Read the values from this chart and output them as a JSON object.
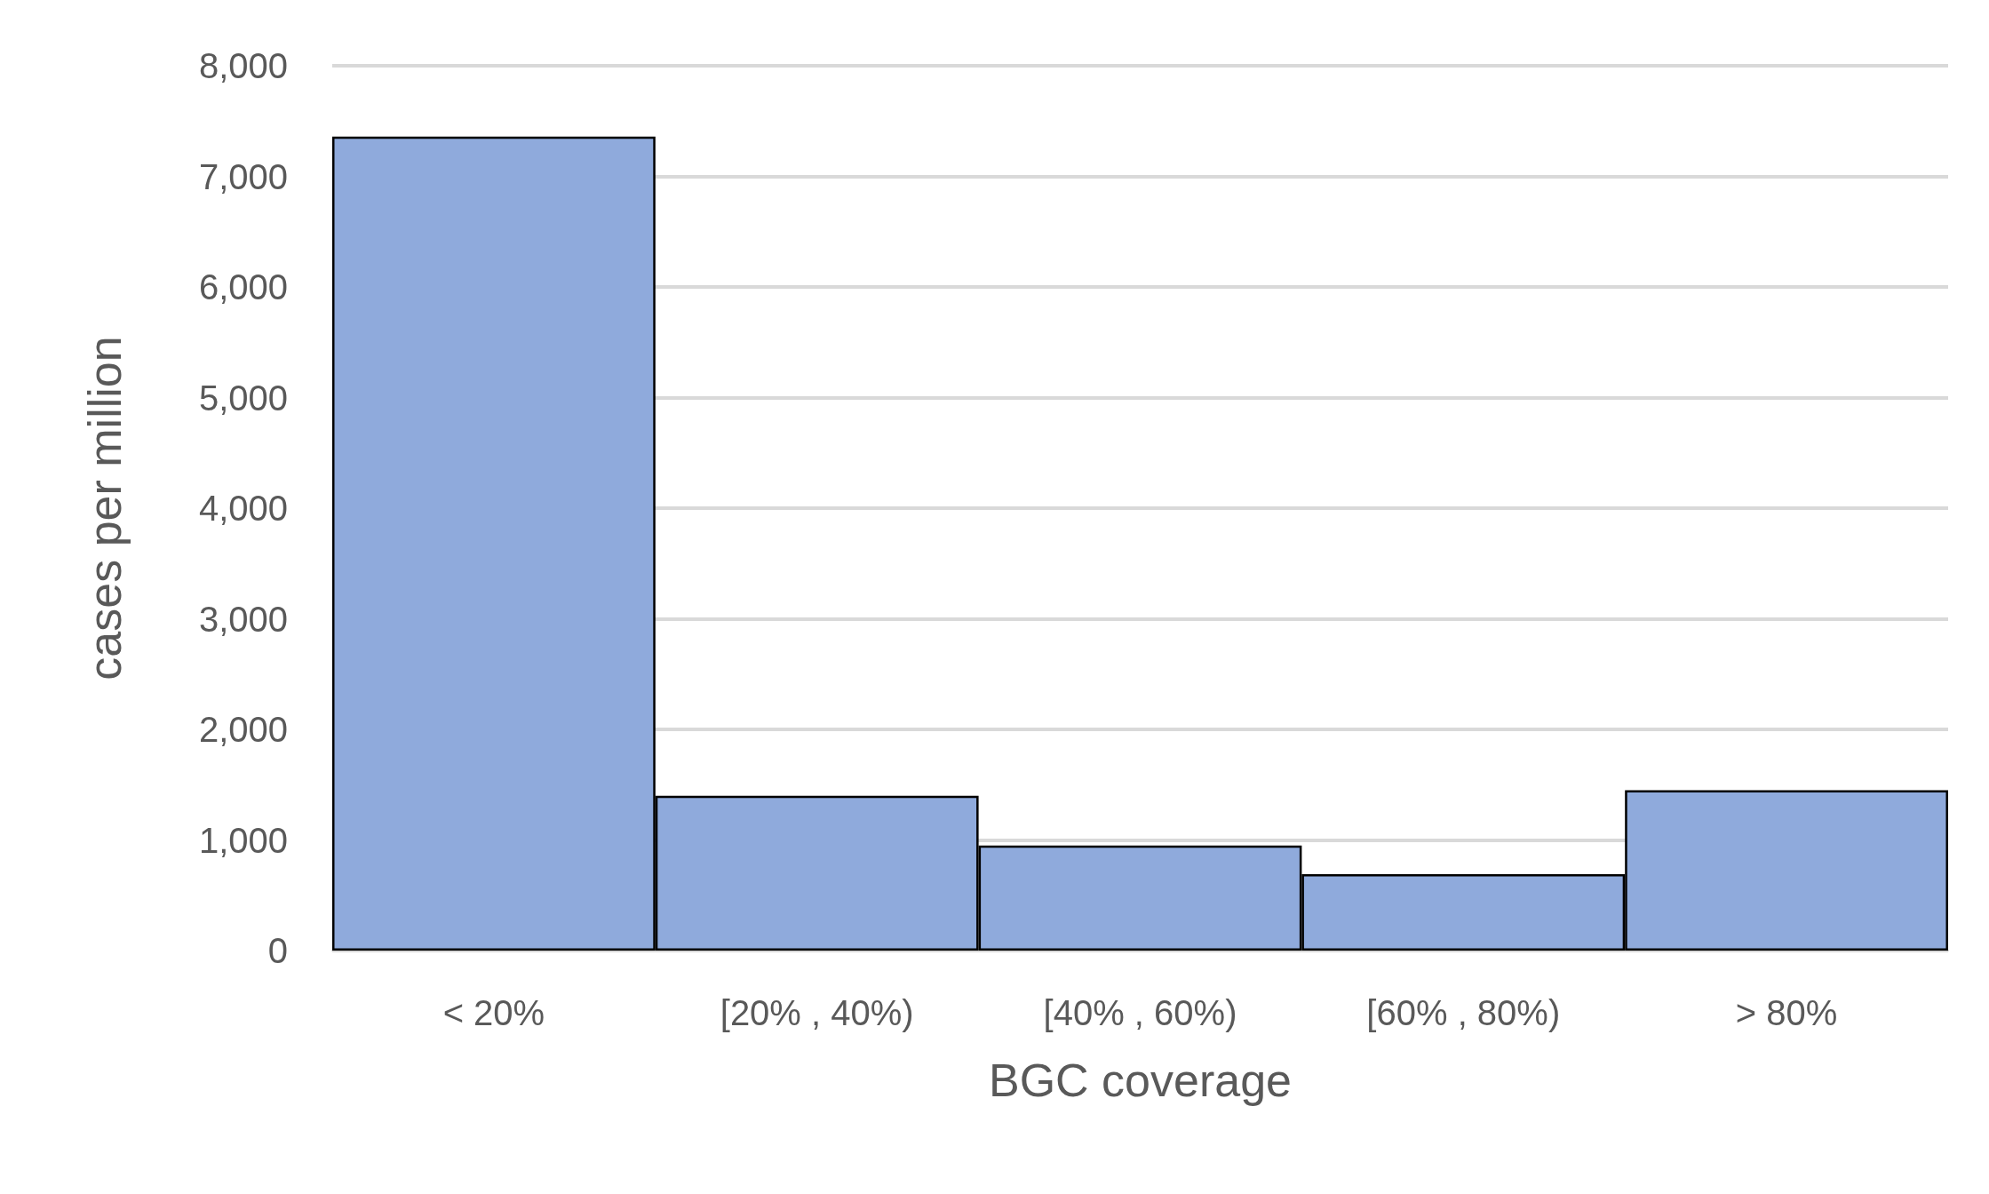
{
  "chart_data": {
    "type": "bar",
    "xlabel": "BGC coverage",
    "ylabel": "cases per million",
    "categories": [
      "< 20%",
      "[20% , 40%)",
      "[40% , 60%)",
      "[60% , 80%)",
      "> 80%"
    ],
    "values": [
      7360,
      1400,
      950,
      690,
      1450
    ],
    "color": "#8faadc",
    "ylim": [
      0,
      8000
    ],
    "yticks": [
      0,
      {
        "value": 1000,
        "label": "1,000"
      },
      {
        "value": 2000,
        "label": "2,000"
      },
      {
        "value": 3000,
        "label": "3,000"
      },
      {
        "value": 4000,
        "label": "4,000"
      },
      {
        "value": 5000,
        "label": "5,000"
      },
      {
        "value": 6000,
        "label": "6,000"
      },
      {
        "value": 7000,
        "label": "7,000"
      },
      {
        "value": 8000,
        "label": "8,000"
      }
    ],
    "grid": "y"
  }
}
